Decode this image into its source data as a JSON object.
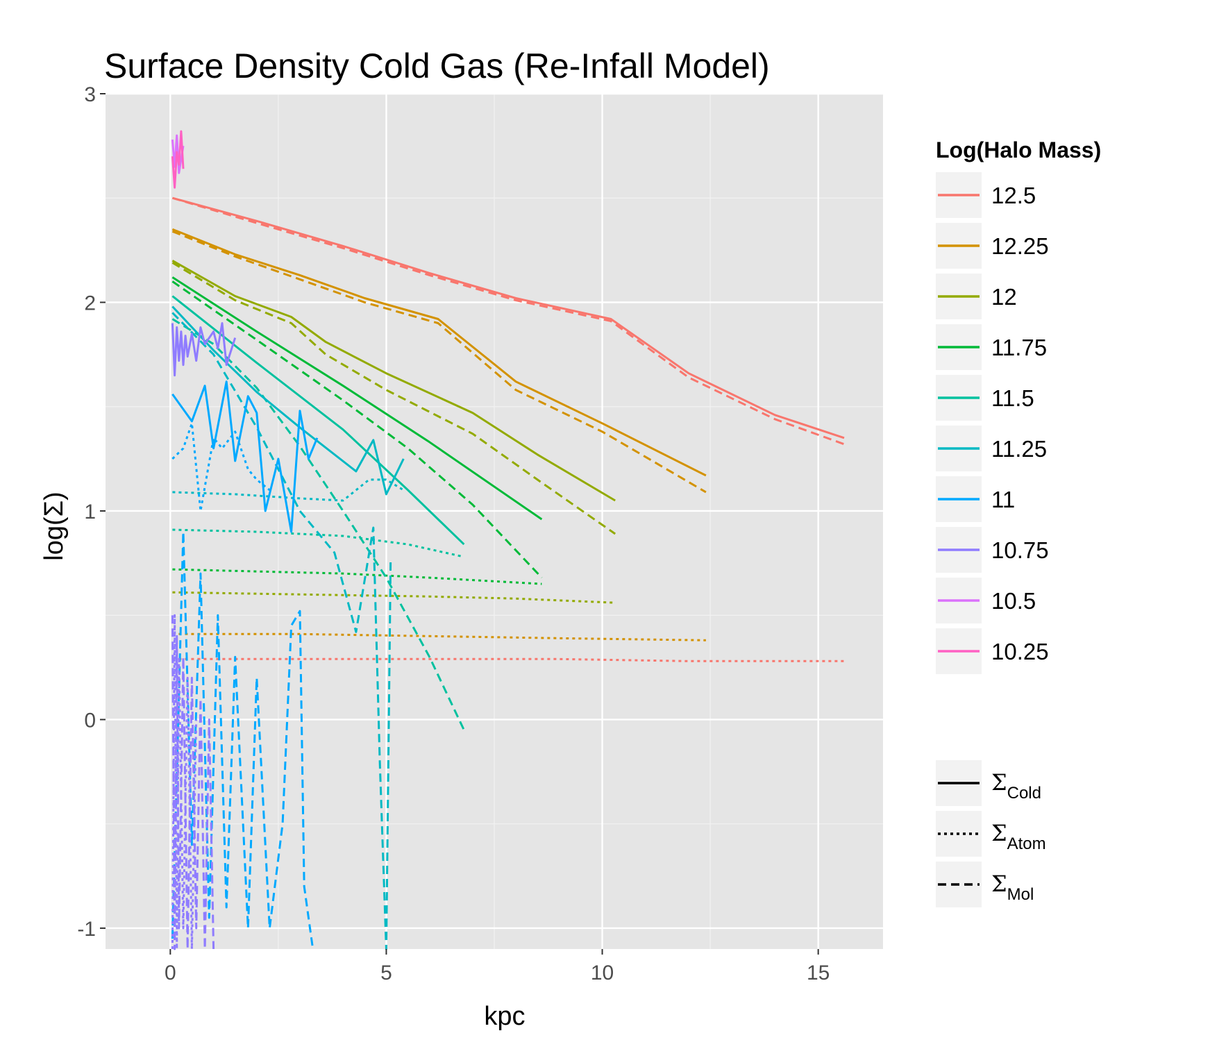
{
  "chart_data": {
    "type": "line",
    "title": "Surface Density Cold Gas (Re-Infall Model)",
    "xlabel": "kpc",
    "ylabel": "log(Σ)",
    "xlim": [
      -1.5,
      16.5
    ],
    "ylim": [
      -1.1,
      3.0
    ],
    "x_ticks": [
      0,
      5,
      10,
      15
    ],
    "y_ticks": [
      -1,
      0,
      1,
      2,
      3
    ],
    "x_tick_labels": [
      "0",
      "5",
      "10",
      "15"
    ],
    "y_tick_labels": [
      "-1",
      "0",
      "1",
      "2",
      "3"
    ],
    "grid": true,
    "background": "#e5e5e5",
    "legend_color_title": "Log(Halo Mass)",
    "legend_position": "right",
    "legend_linetype": [
      {
        "symbol": "Σ",
        "sub": "Cold",
        "style": "solid"
      },
      {
        "symbol": "Σ",
        "sub": "Atom",
        "style": "dotted"
      },
      {
        "symbol": "Σ",
        "sub": "Mol",
        "style": "dashed"
      }
    ],
    "colors": {
      "12.5": "#F8766D",
      "12.25": "#D39200",
      "12": "#93AA00",
      "11.75": "#00BA38",
      "11.5": "#00C19F",
      "11.25": "#00B9C3",
      "11": "#00A9FF",
      "10.75": "#8F7CFF",
      "10.5": "#DB72FB",
      "10.25": "#FF61C3"
    },
    "series": [
      {
        "name": "12.5",
        "cold": {
          "x": [
            0.05,
            2.0,
            4.0,
            6.0,
            8.0,
            10.2,
            12.0,
            14.0,
            15.6
          ],
          "y": [
            2.5,
            2.39,
            2.27,
            2.14,
            2.02,
            1.92,
            1.66,
            1.46,
            1.35
          ]
        },
        "atom": {
          "x": [
            0.05,
            3.0,
            6.0,
            9.0,
            12.0,
            15.6
          ],
          "y": [
            0.29,
            0.29,
            0.29,
            0.29,
            0.28,
            0.28
          ]
        },
        "mol": {
          "x": [
            0.05,
            2.0,
            4.0,
            6.0,
            8.0,
            10.2,
            12.0,
            14.0,
            15.6
          ],
          "y": [
            2.5,
            2.38,
            2.26,
            2.13,
            2.01,
            1.91,
            1.64,
            1.44,
            1.32
          ]
        }
      },
      {
        "name": "12.25",
        "cold": {
          "x": [
            0.05,
            1.5,
            3.0,
            4.5,
            6.2,
            8.0,
            10.0,
            12.4
          ],
          "y": [
            2.35,
            2.23,
            2.13,
            2.02,
            1.92,
            1.62,
            1.42,
            1.17
          ]
        },
        "atom": {
          "x": [
            0.05,
            3.0,
            6.0,
            9.0,
            12.4
          ],
          "y": [
            0.41,
            0.41,
            0.4,
            0.39,
            0.38
          ]
        },
        "mol": {
          "x": [
            0.05,
            1.5,
            3.0,
            4.5,
            6.2,
            8.0,
            10.0,
            12.4
          ],
          "y": [
            2.34,
            2.22,
            2.11,
            2.0,
            1.9,
            1.58,
            1.38,
            1.09
          ]
        }
      },
      {
        "name": "12",
        "cold": {
          "x": [
            0.05,
            1.5,
            2.8,
            3.6,
            5.0,
            7.0,
            8.5,
            10.3
          ],
          "y": [
            2.2,
            2.03,
            1.93,
            1.81,
            1.66,
            1.47,
            1.27,
            1.05
          ]
        },
        "atom": {
          "x": [
            0.05,
            3.0,
            6.0,
            8.0,
            10.3
          ],
          "y": [
            0.61,
            0.6,
            0.59,
            0.58,
            0.56
          ]
        },
        "mol": {
          "x": [
            0.05,
            1.5,
            2.8,
            3.6,
            5.0,
            7.0,
            8.5,
            10.3
          ],
          "y": [
            2.19,
            2.01,
            1.9,
            1.75,
            1.58,
            1.37,
            1.15,
            0.89
          ]
        }
      },
      {
        "name": "11.75",
        "cold": {
          "x": [
            0.05,
            2.0,
            4.0,
            6.0,
            8.6
          ],
          "y": [
            2.12,
            1.86,
            1.6,
            1.33,
            0.96
          ]
        },
        "atom": {
          "x": [
            0.05,
            2.0,
            4.0,
            6.0,
            8.6
          ],
          "y": [
            0.72,
            0.71,
            0.7,
            0.68,
            0.65
          ]
        },
        "mol": {
          "x": [
            0.05,
            2.0,
            4.0,
            5.5,
            7.0,
            8.6
          ],
          "y": [
            2.1,
            1.82,
            1.53,
            1.3,
            1.03,
            0.68
          ]
        }
      },
      {
        "name": "11.5",
        "cold": {
          "x": [
            0.05,
            2.0,
            4.0,
            5.5,
            6.8
          ],
          "y": [
            2.03,
            1.71,
            1.39,
            1.1,
            0.84
          ]
        },
        "atom": {
          "x": [
            0.05,
            2.0,
            4.0,
            5.5,
            6.8
          ],
          "y": [
            0.91,
            0.9,
            0.88,
            0.84,
            0.78
          ]
        },
        "mol": {
          "x": [
            0.05,
            1.0,
            2.0,
            3.0,
            4.0,
            5.0,
            6.0,
            6.8
          ],
          "y": [
            1.92,
            1.8,
            1.59,
            1.31,
            1.0,
            0.68,
            0.3,
            -0.05
          ]
        }
      },
      {
        "name": "11.25",
        "cold": {
          "x": [
            0.05,
            1.0,
            2.0,
            3.0,
            4.3,
            4.7,
            5.0,
            5.4
          ],
          "y": [
            1.98,
            1.77,
            1.57,
            1.4,
            1.19,
            1.34,
            1.08,
            1.25
          ]
        },
        "atom": {
          "x": [
            0.05,
            1.5,
            3.0,
            4.0,
            4.6,
            5.0,
            5.4
          ],
          "y": [
            1.09,
            1.08,
            1.06,
            1.05,
            1.15,
            1.15,
            1.1
          ]
        },
        "mol": {
          "x": [
            0.05,
            1.0,
            2.0,
            3.0,
            3.8,
            4.3,
            4.7,
            4.85,
            5.0,
            5.1
          ],
          "y": [
            1.95,
            1.75,
            1.4,
            1.0,
            0.8,
            0.42,
            0.92,
            -0.2,
            -1.1,
            0.77
          ]
        }
      },
      {
        "name": "11",
        "cold": {
          "x": [
            0.05,
            0.5,
            0.8,
            1.0,
            1.3,
            1.5,
            1.8,
            2.0,
            2.2,
            2.5,
            2.8,
            3.0,
            3.2,
            3.4
          ],
          "y": [
            1.56,
            1.43,
            1.6,
            1.3,
            1.62,
            1.24,
            1.55,
            1.47,
            1.0,
            1.25,
            0.9,
            1.48,
            1.25,
            1.35
          ]
        },
        "atom": {
          "x": [
            0.05,
            0.3,
            0.5,
            0.7,
            1.0,
            1.2,
            1.5,
            1.8,
            2.0,
            2.3
          ],
          "y": [
            1.25,
            1.3,
            1.42,
            1.0,
            1.35,
            1.3,
            1.38,
            1.2,
            1.15,
            1.1
          ]
        },
        "mol": {
          "x": [
            0.05,
            0.3,
            0.5,
            0.7,
            0.9,
            1.1,
            1.3,
            1.5,
            1.8,
            2.0,
            2.3,
            2.6,
            2.8,
            3.0,
            3.1,
            3.3
          ],
          "y": [
            -1.05,
            0.9,
            -0.6,
            0.7,
            -0.95,
            0.5,
            -0.9,
            0.3,
            -1.0,
            0.2,
            -1.0,
            -0.5,
            0.45,
            0.52,
            -0.8,
            -1.1
          ]
        }
      },
      {
        "name": "10.75",
        "cold": {
          "x": [
            0.05,
            0.1,
            0.15,
            0.2,
            0.25,
            0.3,
            0.35,
            0.4,
            0.5,
            0.6,
            0.7,
            0.8,
            1.0,
            1.1,
            1.2,
            1.3,
            1.5
          ],
          "y": [
            1.9,
            1.65,
            1.88,
            1.72,
            1.86,
            1.7,
            1.84,
            1.74,
            1.85,
            1.72,
            1.88,
            1.8,
            1.86,
            1.78,
            1.9,
            1.7,
            1.83
          ]
        },
        "atom": {
          "x": [
            0.05,
            0.1,
            0.15,
            0.2,
            0.3,
            0.4,
            0.5,
            0.6
          ],
          "y": [
            -1.1,
            0.5,
            -1.1,
            0.3,
            -1.0,
            0.2,
            -1.1,
            0.0
          ]
        },
        "mol": {
          "x": [
            0.05,
            0.1,
            0.15,
            0.2,
            0.3,
            0.4,
            0.5,
            0.6,
            0.7,
            0.8,
            0.9,
            1.0
          ],
          "y": [
            0.5,
            -1.1,
            0.4,
            -1.0,
            0.3,
            -1.1,
            0.2,
            -1.0,
            0.1,
            -1.1,
            0.0,
            -1.1
          ]
        }
      },
      {
        "name": "10.5",
        "cold": {
          "x": [
            0.05,
            0.1,
            0.15,
            0.2,
            0.3
          ],
          "y": [
            2.78,
            2.65,
            2.8,
            2.62,
            2.75
          ]
        }
      },
      {
        "name": "10.25",
        "cold": {
          "x": [
            0.05,
            0.1,
            0.15,
            0.2,
            0.25,
            0.3
          ],
          "y": [
            2.7,
            2.55,
            2.72,
            2.66,
            2.82,
            2.64
          ]
        }
      }
    ]
  }
}
